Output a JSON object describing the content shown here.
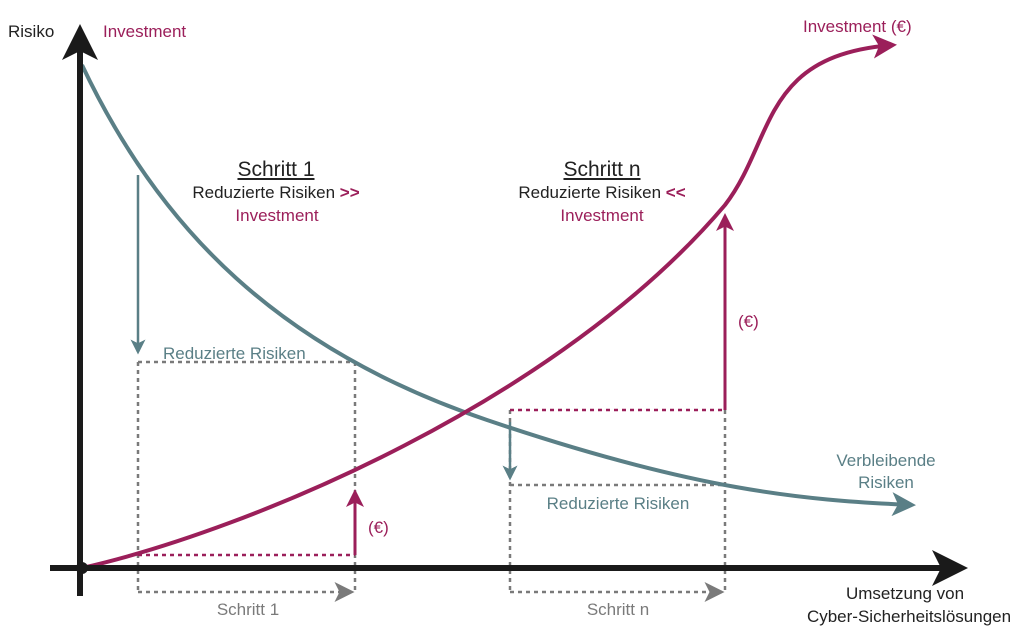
{
  "axes": {
    "y_label": "Risiko",
    "y_label_secondary": "Investment",
    "x_label_line1": "Umsetzung von",
    "x_label_line2": "Cyber-Sicherheitslösungen"
  },
  "curves": {
    "investment_label": "Investment (€)",
    "risk_label_line1": "Verbleibende",
    "risk_label_line2": "Risiken"
  },
  "step1": {
    "title": "Schritt 1",
    "line1": "Reduzierte Risiken",
    "comparator": ">>",
    "line2": "Investment",
    "reduced_label": "Reduzierte Risiken",
    "cost_label": "(€)",
    "span_label": "Schritt 1"
  },
  "stepn": {
    "title": "Schritt n",
    "line1": "Reduzierte Risiken",
    "comparator": "<<",
    "line2": "Investment",
    "reduced_label": "Reduzierte Risiken",
    "cost_label": "(€)",
    "span_label": "Schritt n"
  },
  "colors": {
    "risk": "#5a7f86",
    "investment": "#9b1f5a",
    "guide": "#7a7a7a",
    "axis": "#1a1a1a"
  }
}
